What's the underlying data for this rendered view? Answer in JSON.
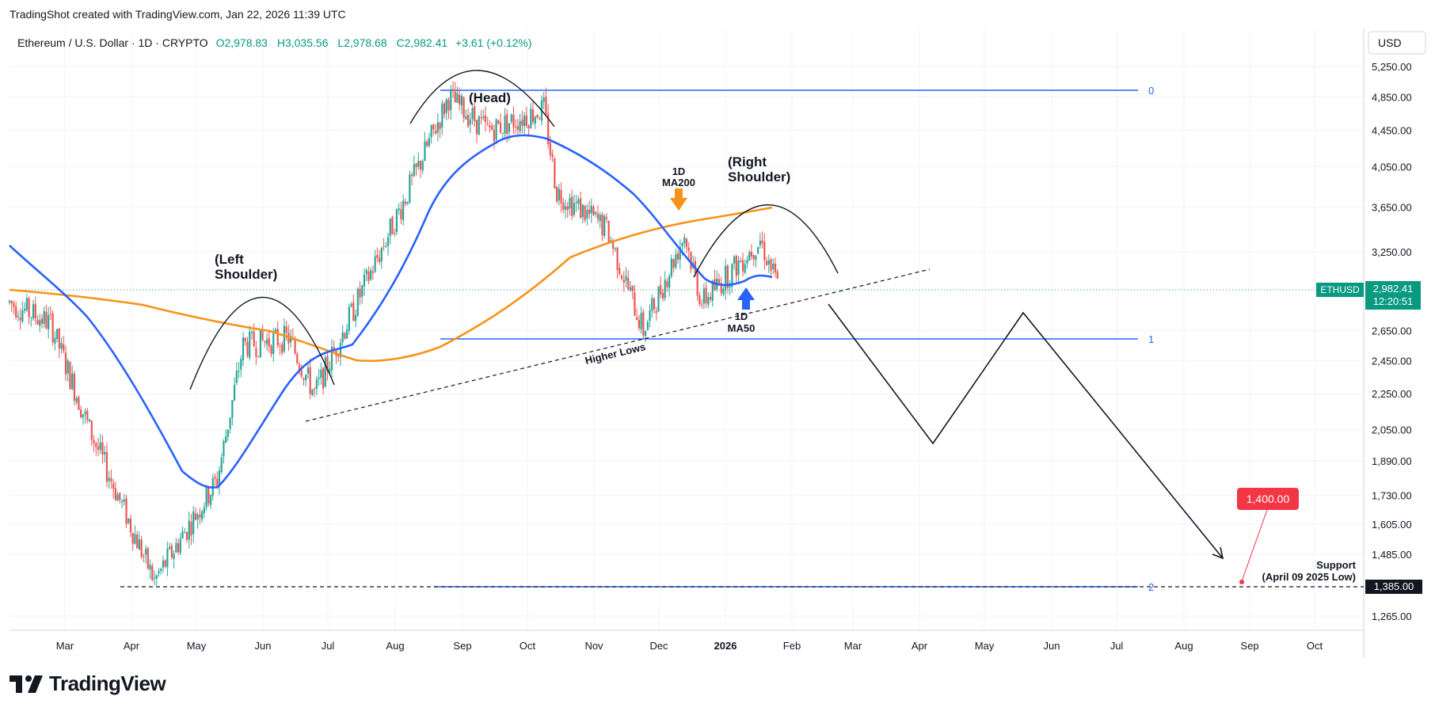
{
  "header": {
    "created_text": "TradingShot created with TradingView.com, Jan 22, 2026 11:39 UTC"
  },
  "legend": {
    "symbol": "Ethereum / U.S. Dollar · 1D · CRYPTO",
    "open": "O2,978.83",
    "high": "H3,035.56",
    "low": "L2,978.68",
    "close": "C2,982.41",
    "change": "+3.61 (+0.12%)"
  },
  "currency": "USD",
  "brand": "TradingView",
  "colors": {
    "up": "#26a69a",
    "down": "#ef5350",
    "ma50": "#2962ff",
    "ma200": "#f7931a",
    "fib": "#2962ff",
    "price_label": "#089981",
    "target_label": "#f23645"
  },
  "price_tag": {
    "symbol": "ETHUSD",
    "price": "2,982.41",
    "countdown": "12:20:51"
  },
  "support_tag": {
    "price": "1,385.00"
  },
  "target_tag": {
    "price": "1,400.00"
  },
  "annotations": {
    "head": "(Head)",
    "left_shoulder_1": "(Left",
    "left_shoulder_2": "Shoulder)",
    "right_shoulder_1": "(Right",
    "right_shoulder_2": "Shoulder)",
    "ma200_1": "1D",
    "ma200_2": "MA200",
    "ma50_1": "1D",
    "ma50_2": "MA50",
    "higher_lows": "Higher Lows",
    "support_1": "Support",
    "support_2": "(April 09 2025 Low)",
    "fib_0": "0",
    "fib_1": "1",
    "fib_2": "2"
  },
  "chart_data": {
    "type": "candlestick",
    "title": "Ethereum / U.S. Dollar · 1D · CRYPTO",
    "y_axis_ticks": [
      5250,
      4850,
      4450,
      4050,
      3650,
      3250,
      2982.41,
      2650,
      2450,
      2250,
      2050,
      1890,
      1730,
      1605,
      1485,
      1385,
      1265
    ],
    "y_tick_labels": [
      "5,250.00",
      "4,850.00",
      "4,450.00",
      "4,050.00",
      "3,650.00",
      "3,250.00",
      "2,982.41",
      "2,650.00",
      "2,450.00",
      "2,250.00",
      "2,050.00",
      "1,890.00",
      "1,730.00",
      "1,605.00",
      "1,485.00",
      "1,385.00",
      "1,265.00"
    ],
    "x_axis_ticks": [
      "Mar",
      "Apr",
      "May",
      "Jun",
      "Jul",
      "Aug",
      "Sep",
      "Oct",
      "Nov",
      "Dec",
      "2026",
      "Feb",
      "Mar",
      "Apr",
      "May",
      "Jun",
      "Jul",
      "Aug",
      "Sep",
      "Oct"
    ],
    "x_range": [
      "2025-02-01",
      "2026-10-20"
    ],
    "y_scale": "log",
    "price_path_approx": [
      [
        "2025-02-01",
        2850
      ],
      [
        "2025-02-20",
        2700
      ],
      [
        "2025-03-10",
        2050
      ],
      [
        "2025-04-09",
        1385
      ],
      [
        "2025-05-08",
        1800
      ],
      [
        "2025-05-20",
        2550
      ],
      [
        "2025-06-10",
        2600
      ],
      [
        "2025-06-22",
        2250
      ],
      [
        "2025-07-10",
        2800
      ],
      [
        "2025-08-01",
        3650
      ],
      [
        "2025-08-23",
        4850
      ],
      [
        "2025-09-10",
        4450
      ],
      [
        "2025-10-06",
        4700
      ],
      [
        "2025-10-12",
        3800
      ],
      [
        "2025-11-04",
        3450
      ],
      [
        "2025-11-21",
        2650
      ],
      [
        "2025-12-10",
        3400
      ],
      [
        "2025-12-18",
        2850
      ],
      [
        "2026-01-14",
        3350
      ],
      [
        "2026-01-22",
        2982.41
      ]
    ],
    "ma50_approx": [
      [
        "2025-02-01",
        3300
      ],
      [
        "2025-04-01",
        2100
      ],
      [
        "2025-05-01",
        1780
      ],
      [
        "2025-06-15",
        2300
      ],
      [
        "2025-07-15",
        2750
      ],
      [
        "2025-08-20",
        3900
      ],
      [
        "2025-09-25",
        4450
      ],
      [
        "2025-10-25",
        4150
      ],
      [
        "2025-11-20",
        3550
      ],
      [
        "2025-12-20",
        3020
      ],
      [
        "2026-01-22",
        3050
      ]
    ],
    "ma200_approx": [
      [
        "2025-02-01",
        2960
      ],
      [
        "2025-04-01",
        2850
      ],
      [
        "2025-06-01",
        2720
      ],
      [
        "2025-07-20",
        2500
      ],
      [
        "2025-09-01",
        2900
      ],
      [
        "2025-10-15",
        3300
      ],
      [
        "2025-12-15",
        3580
      ],
      [
        "2026-01-22",
        3640
      ]
    ],
    "fib_levels": [
      {
        "label": "0",
        "price": 4950
      },
      {
        "label": "1",
        "price": 2620
      },
      {
        "label": "2",
        "price": 1385
      }
    ],
    "projection_path": [
      [
        "2026-01-23",
        2850
      ],
      [
        "2026-04-02",
        2000
      ],
      [
        "2026-05-20",
        2780
      ],
      [
        "2026-08-24",
        1490
      ]
    ],
    "target": {
      "price": 1400,
      "date": "2026-08-28"
    },
    "support": {
      "price": 1385,
      "label": "Support (April 09 2025 Low)"
    }
  }
}
